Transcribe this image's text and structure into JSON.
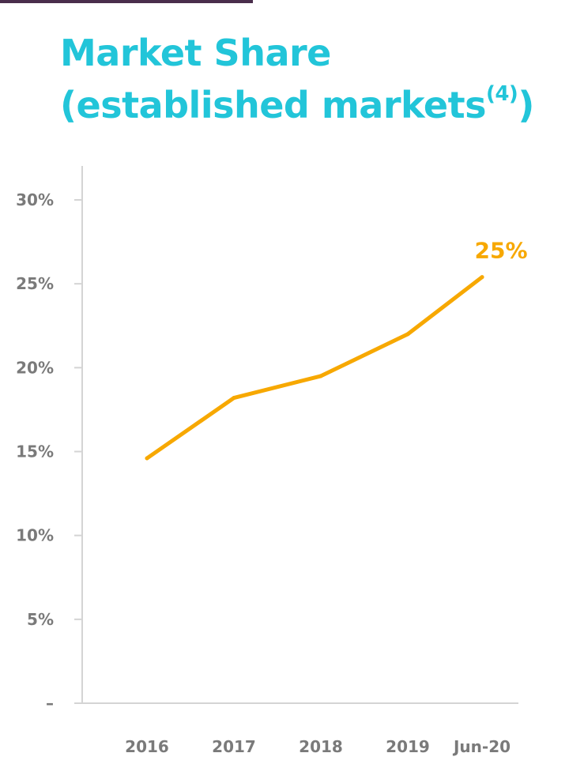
{
  "colors": {
    "title": "#22c5d9",
    "line": "#f7a800",
    "axis_text": "#7a7a7a",
    "axis_line": "#d4d4d4",
    "top_rule": "#4a2e4c"
  },
  "chart_data": {
    "type": "line",
    "title": {
      "line1": "Market Share",
      "line2_main": "(established markets",
      "line2_sup": "(4)",
      "line2_close": ")"
    },
    "xlabel": "",
    "ylabel": "",
    "categories": [
      "2016",
      "2017",
      "2018",
      "2019",
      "Jun-20"
    ],
    "y_ticks": [
      {
        "value": 0,
        "label": "–"
      },
      {
        "value": 5,
        "label": "5%"
      },
      {
        "value": 10,
        "label": "10%"
      },
      {
        "value": 15,
        "label": "15%"
      },
      {
        "value": 20,
        "label": "20%"
      },
      {
        "value": 25,
        "label": "25%"
      },
      {
        "value": 30,
        "label": "30%"
      }
    ],
    "ylim": [
      0,
      30
    ],
    "grid": false,
    "legend": "none",
    "series": [
      {
        "values": [
          14.6,
          18.2,
          19.5,
          22.0,
          25.4
        ]
      }
    ],
    "data_labels": [
      {
        "index": 4,
        "text": "25%"
      }
    ]
  }
}
